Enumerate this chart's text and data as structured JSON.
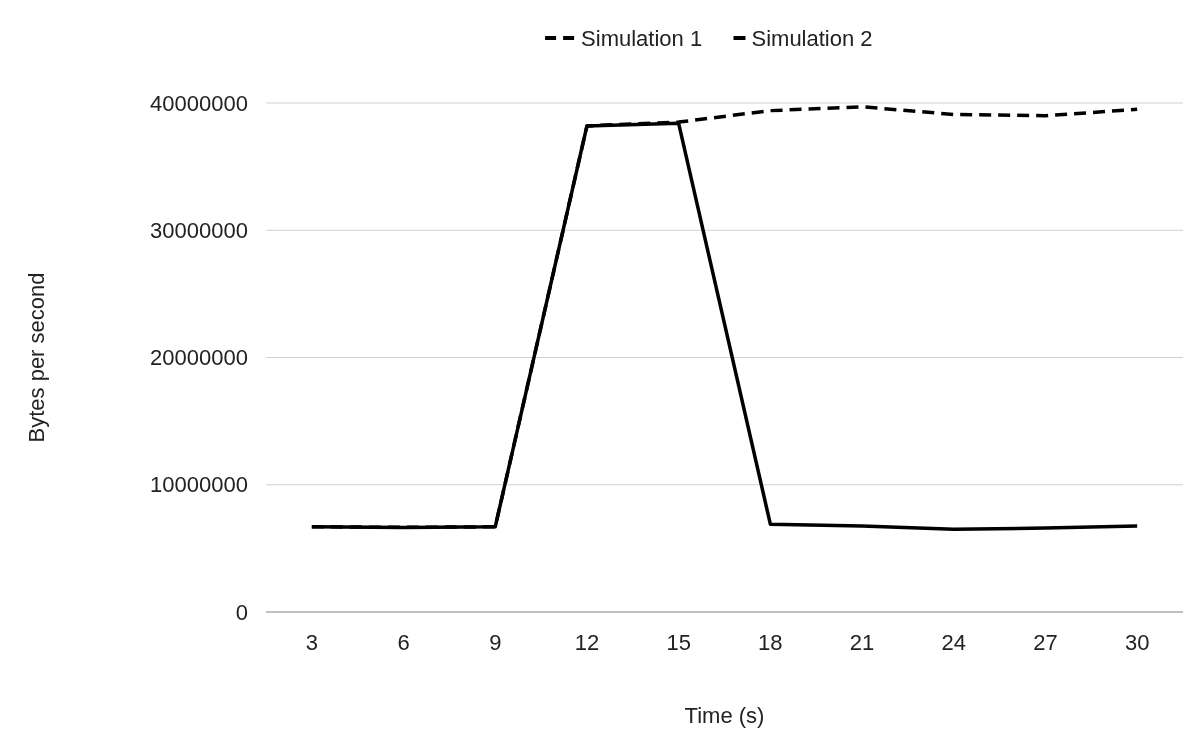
{
  "chart_data": {
    "type": "line",
    "xlabel": "Time (s)",
    "ylabel": "Bytes per second",
    "categories": [
      "3",
      "6",
      "9",
      "12",
      "15",
      "18",
      "21",
      "24",
      "27",
      "30"
    ],
    "series": [
      {
        "name": "Simulation 1",
        "color": "#000000",
        "line_style": "dashed",
        "values": [
          6700000,
          6650000,
          6700000,
          38200000,
          38500000,
          39400000,
          39700000,
          39100000,
          39000000,
          39500000
        ]
      },
      {
        "name": "Simulation 2",
        "color": "#000000",
        "line_style": "solid",
        "values": [
          6700000,
          6650000,
          6700000,
          38200000,
          38400000,
          6900000,
          6750000,
          6500000,
          6600000,
          6750000
        ]
      }
    ],
    "ylim": [
      0,
      40000000
    ],
    "yticks": [
      0,
      10000000,
      20000000,
      30000000,
      40000000
    ],
    "grid": "y",
    "legend": "top"
  }
}
